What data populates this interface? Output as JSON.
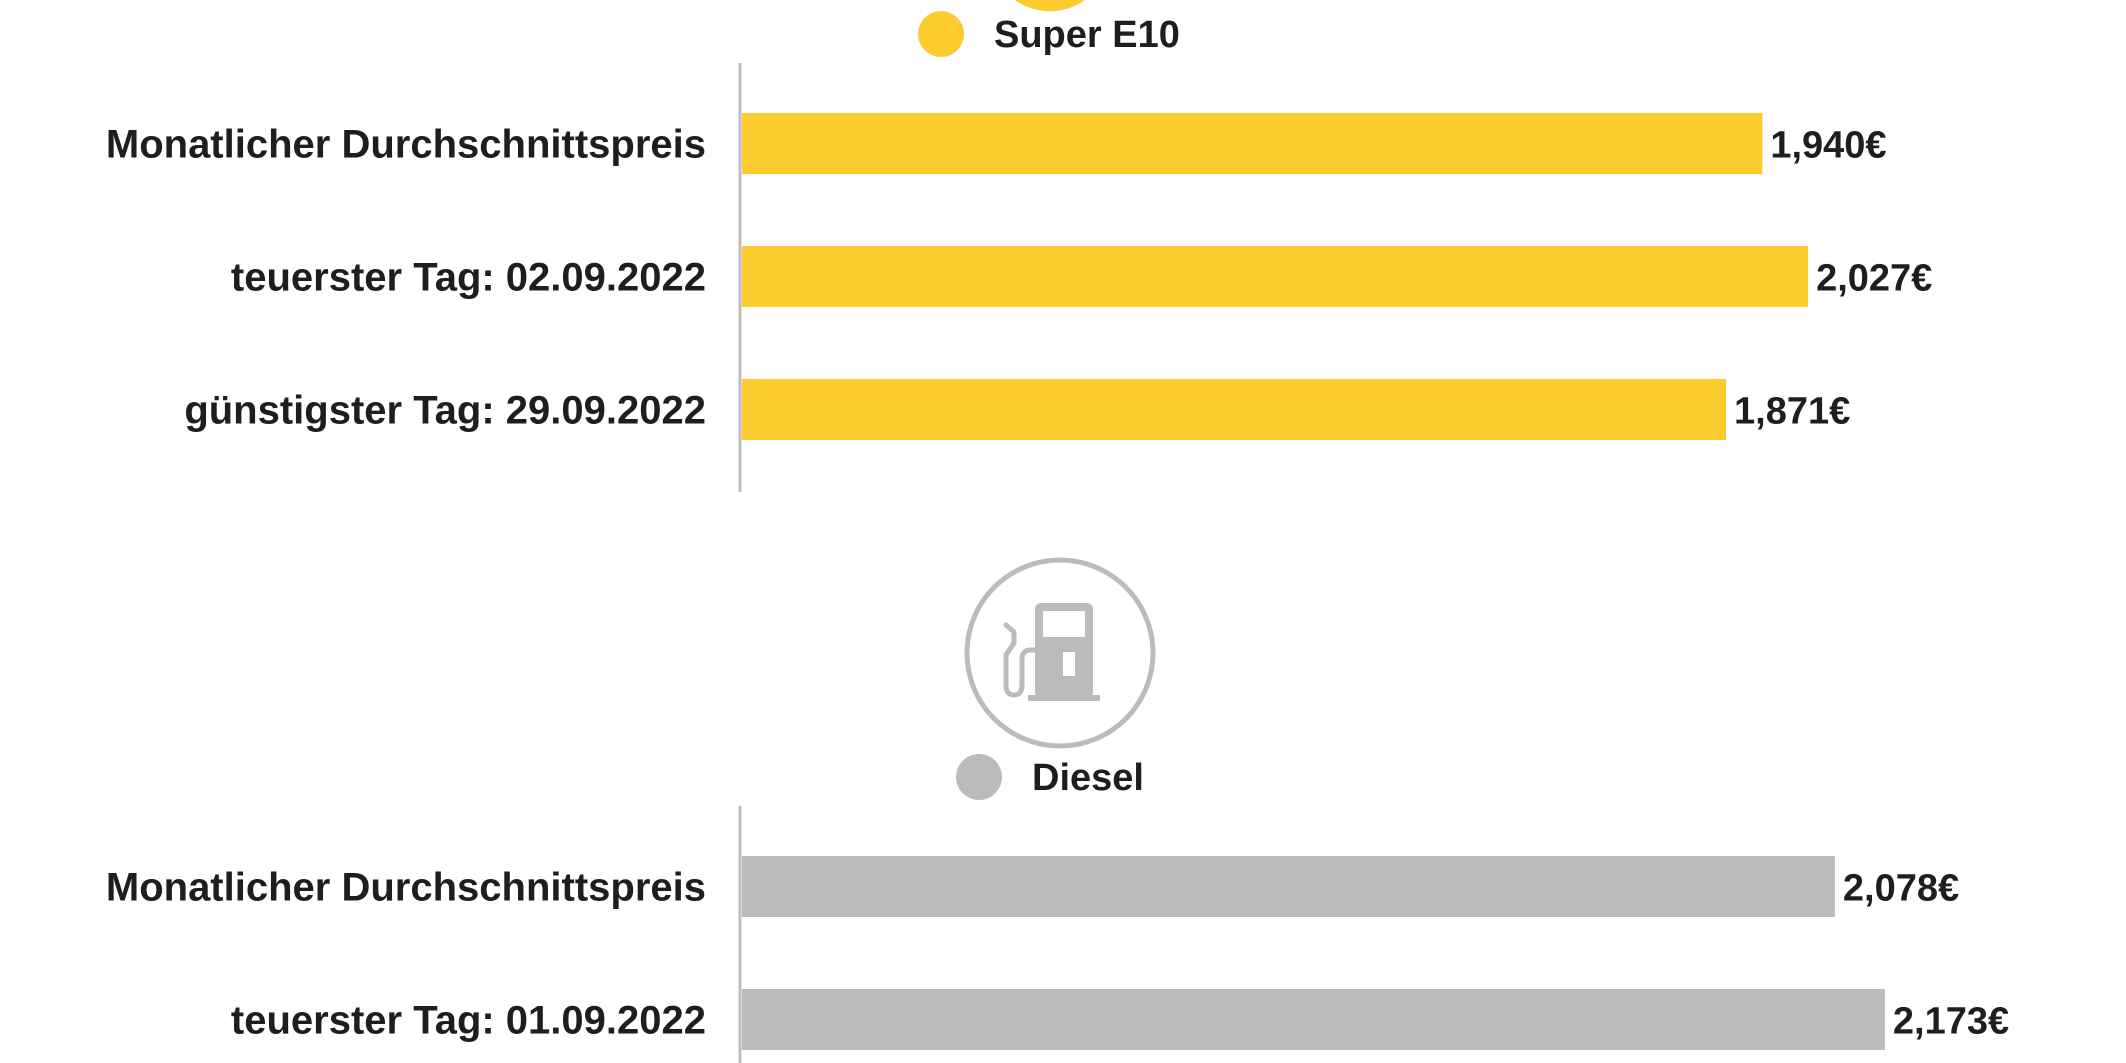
{
  "chart_data": [
    {
      "type": "bar",
      "orientation": "horizontal",
      "legend": "Super E10",
      "color": "#FBCB30",
      "icon": "fuel-pump-icon",
      "categories": [
        "Monatlicher Durchschnittspreis",
        "teuerster Tag: 02.09.2022",
        "günstigster Tag: 29.09.2022"
      ],
      "values": [
        1.94,
        2.027,
        1.871
      ],
      "value_labels": [
        "1,940€",
        "2,027€",
        "1,871€"
      ],
      "xlim": [
        0,
        2.12
      ]
    },
    {
      "type": "bar",
      "orientation": "horizontal",
      "legend": "Diesel",
      "color": "#BBBBBB",
      "icon": "fuel-pump-icon",
      "categories": [
        "Monatlicher Durchschnittspreis",
        "teuerster Tag: 01.09.2022"
      ],
      "values": [
        2.078,
        2.173
      ],
      "value_labels": [
        "2,078€",
        "2,173€"
      ],
      "xlim": [
        0,
        2.12
      ]
    }
  ]
}
